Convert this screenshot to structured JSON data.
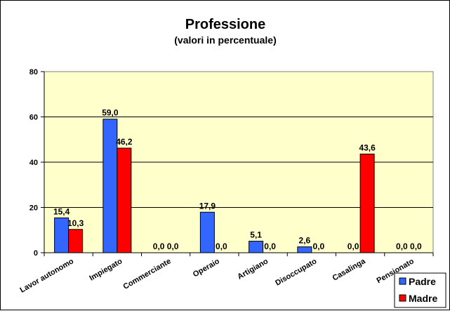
{
  "chart_data": {
    "type": "bar",
    "title": "Professione",
    "subtitle": "(valori in percentuale)",
    "categories": [
      "Lavor autonomo",
      "Impiegato",
      "Commerciante",
      "Operaio",
      "Artigiano",
      "Disoccupato",
      "Casalinga",
      "Pensionato"
    ],
    "series": [
      {
        "name": "Padre",
        "color": "#3366ff",
        "values": [
          15.4,
          59.0,
          0.0,
          17.9,
          5.1,
          2.6,
          0.0,
          0.0
        ],
        "labels": [
          "15,4",
          "59,0",
          "0,0",
          "17,9",
          "5,1",
          "2,6",
          "0,0",
          "0,0"
        ]
      },
      {
        "name": "Madre",
        "color": "#ff0000",
        "values": [
          10.3,
          46.2,
          0.0,
          0.0,
          0.0,
          0.0,
          43.6,
          0.0
        ],
        "labels": [
          "10,3",
          "46,2",
          "0,0",
          "0,0",
          "0,0",
          "0,0",
          "43,6",
          "0,0"
        ]
      }
    ],
    "ylim": [
      0,
      80
    ],
    "yticks": [
      0,
      20,
      40,
      60,
      80
    ],
    "ytick_labels": [
      "0",
      "20",
      "40",
      "60",
      "80"
    ],
    "grid": true,
    "plot_background": "#ffffcc",
    "legend_position": "bottom-right"
  }
}
